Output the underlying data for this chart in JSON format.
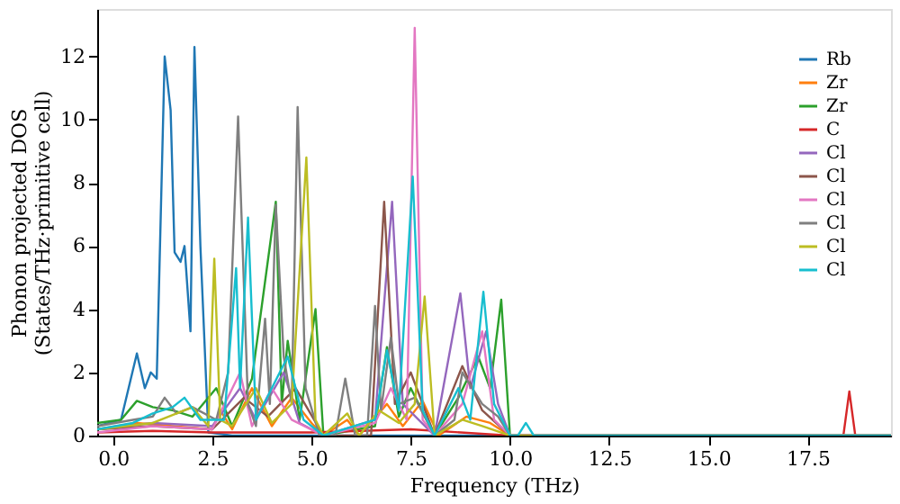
{
  "chart_data": {
    "type": "line",
    "xlabel": "Frequency (THz)",
    "ylabel": "Phonon projected DOS\n(States/THz·primitive cell)",
    "xlim": [
      -0.4,
      19.6
    ],
    "ylim": [
      0,
      13.5
    ],
    "xticks": [
      {
        "value": 0,
        "label": "0.0"
      },
      2.5,
      {
        "value": 5,
        "label": "5.0"
      },
      7.5,
      {
        "value": 10,
        "label": "10.0"
      },
      12.5,
      {
        "value": 15,
        "label": "15.0"
      },
      17.5
    ],
    "yticks": [
      0,
      2,
      4,
      6,
      8,
      10,
      12
    ],
    "grid": false,
    "legend": "top right",
    "line_style": "solid",
    "marker": "none",
    "series": [
      {
        "name": "Rb",
        "color": "#1f77b4",
        "x": [
          -0.4,
          0.2,
          0.6,
          0.8,
          0.95,
          1.1,
          1.3,
          1.45,
          1.55,
          1.7,
          1.8,
          1.95,
          2.05,
          2.2,
          2.4,
          3.0,
          19.6
        ],
        "values": [
          0.3,
          0.5,
          2.6,
          1.5,
          2.0,
          1.8,
          12.0,
          10.3,
          5.8,
          5.5,
          6.0,
          3.3,
          12.3,
          6.0,
          0.1,
          0,
          0
        ]
      },
      {
        "name": "Zr",
        "color": "#ff7f0e",
        "x": [
          -0.4,
          0.6,
          1.5,
          2.5,
          2.7,
          3.0,
          3.5,
          4.0,
          4.5,
          5.0,
          5.3,
          5.9,
          6.2,
          6.9,
          7.3,
          7.8,
          8.2,
          8.9,
          9.5,
          10.0,
          19.6
        ],
        "values": [
          0.2,
          0.4,
          0.3,
          0.2,
          0.8,
          0.2,
          1.5,
          0.3,
          1.2,
          0.4,
          0,
          0.5,
          0,
          1.0,
          0.3,
          1.1,
          0,
          0.6,
          0.4,
          0,
          0
        ]
      },
      {
        "name": "Zr",
        "color": "#2ca02c",
        "x": [
          -0.4,
          0.2,
          0.6,
          1.0,
          1.5,
          2.0,
          2.6,
          3.0,
          3.5,
          4.1,
          4.25,
          4.4,
          4.7,
          5.1,
          5.3,
          6.6,
          6.9,
          7.2,
          7.5,
          8.1,
          8.7,
          9.2,
          9.5,
          9.78,
          10.0,
          19.6
        ],
        "values": [
          0.4,
          0.5,
          1.1,
          0.9,
          0.8,
          0.6,
          1.5,
          0.3,
          1.8,
          7.4,
          1.0,
          3.0,
          0.5,
          4.0,
          0,
          0.3,
          2.8,
          0.6,
          1.5,
          0,
          1.2,
          2.5,
          1.5,
          4.3,
          0,
          0
        ]
      },
      {
        "name": "C",
        "color": "#d62728",
        "x": [
          -0.4,
          1.0,
          2.5,
          5.0,
          7.5,
          10.0,
          18.4,
          18.55,
          18.7,
          19.6
        ],
        "values": [
          0.1,
          0.15,
          0.1,
          0.1,
          0.2,
          0,
          0,
          1.4,
          0,
          0
        ]
      },
      {
        "name": "Cl",
        "color": "#9467bd",
        "x": [
          -0.4,
          1.0,
          2.5,
          3.2,
          3.6,
          4.3,
          4.7,
          5.3,
          6.6,
          7.03,
          7.3,
          8.1,
          8.75,
          9.0,
          9.4,
          9.7,
          10.0,
          19.6
        ],
        "values": [
          0.2,
          0.4,
          0.3,
          1.5,
          0.5,
          2.0,
          0.4,
          0,
          0.5,
          7.4,
          1.0,
          0,
          4.5,
          1.5,
          3.3,
          1.0,
          0,
          0
        ]
      },
      {
        "name": "Cl",
        "color": "#8c564b",
        "x": [
          -0.4,
          1.0,
          2.5,
          3.3,
          3.9,
          4.6,
          5.3,
          6.5,
          6.83,
          7.1,
          7.5,
          8.1,
          8.8,
          9.3,
          10.0,
          19.6
        ],
        "values": [
          0.2,
          0.3,
          0.2,
          1.2,
          0.6,
          1.5,
          0,
          0,
          7.4,
          1.0,
          2.0,
          0,
          2.2,
          0.8,
          0,
          0
        ]
      },
      {
        "name": "Cl",
        "color": "#e377c2",
        "x": [
          -0.4,
          1.0,
          2.5,
          3.2,
          3.5,
          4.0,
          4.5,
          5.3,
          6.6,
          7.0,
          7.4,
          7.6,
          7.8,
          8.1,
          8.8,
          9.3,
          9.6,
          10.0,
          19.6
        ],
        "values": [
          0.1,
          0.3,
          0.2,
          2.0,
          0.3,
          1.5,
          0.5,
          0,
          0.4,
          1.5,
          0.5,
          12.9,
          0.5,
          0,
          1.0,
          3.3,
          0.5,
          0,
          0
        ]
      },
      {
        "name": "Cl",
        "color": "#7f7f7f",
        "x": [
          -0.4,
          0.5,
          1.0,
          1.3,
          1.6,
          2.0,
          2.6,
          2.9,
          3.15,
          3.4,
          3.6,
          3.83,
          3.95,
          4.1,
          4.3,
          4.5,
          4.65,
          4.85,
          5.2,
          5.6,
          5.85,
          6.1,
          6.4,
          6.6,
          6.75,
          7.0,
          7.2,
          7.6,
          8.1,
          8.6,
          8.8,
          9.3,
          9.7,
          10.0,
          19.6
        ],
        "values": [
          0.3,
          0.5,
          0.6,
          1.2,
          0.7,
          0.9,
          0.5,
          2.0,
          10.1,
          1.0,
          0.3,
          3.7,
          1.0,
          7.3,
          2.5,
          1.0,
          10.4,
          1.5,
          0,
          0,
          1.8,
          0,
          0,
          4.1,
          0.8,
          3.1,
          1.0,
          1.2,
          0,
          0.5,
          2.0,
          1.0,
          0.6,
          0,
          0
        ]
      },
      {
        "name": "Cl",
        "color": "#bcbd22",
        "x": [
          -0.4,
          1.0,
          2.0,
          2.4,
          2.55,
          2.7,
          3.0,
          3.6,
          4.0,
          4.5,
          4.87,
          5.1,
          5.3,
          5.9,
          6.2,
          6.7,
          7.2,
          7.6,
          7.85,
          8.1,
          8.8,
          9.3,
          10.0,
          19.6
        ],
        "values": [
          0.2,
          0.4,
          0.9,
          0.3,
          5.6,
          0.5,
          0.3,
          1.5,
          0.4,
          1.0,
          8.8,
          0.5,
          0,
          0.7,
          0,
          0.8,
          0.4,
          1.0,
          4.4,
          0,
          0.5,
          0.3,
          0,
          0
        ]
      },
      {
        "name": "Cl",
        "color": "#17becf",
        "x": [
          -0.4,
          0.5,
          1.0,
          1.5,
          1.8,
          2.2,
          2.8,
          3.1,
          3.2,
          3.4,
          3.6,
          4.0,
          4.4,
          4.8,
          5.3,
          6.6,
          6.9,
          7.2,
          7.55,
          7.8,
          8.1,
          8.7,
          9.0,
          9.33,
          9.6,
          10.0,
          10.2,
          10.4,
          10.6,
          19.6
        ],
        "values": [
          0.2,
          0.4,
          0.7,
          0.9,
          1.2,
          0.5,
          0.5,
          5.3,
          1.5,
          6.9,
          0.5,
          1.5,
          2.5,
          0.5,
          0,
          0.5,
          2.7,
          0.8,
          8.2,
          0.8,
          0,
          1.5,
          0.5,
          4.55,
          1.0,
          0,
          0,
          0.4,
          0,
          0
        ]
      }
    ]
  }
}
